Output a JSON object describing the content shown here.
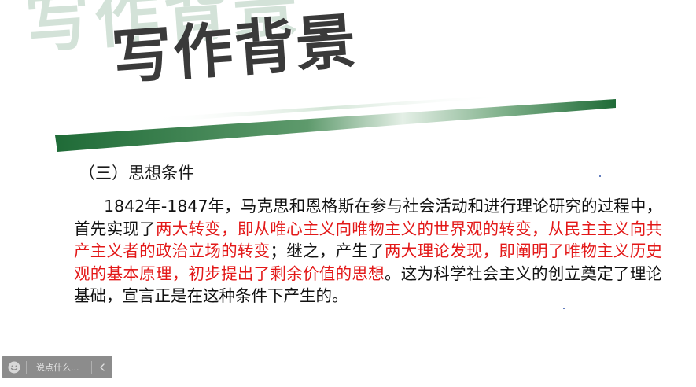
{
  "slide": {
    "title_shadow": "写作背景",
    "title": "写作背景",
    "section_heading": "（三）思想条件",
    "paragraph": [
      {
        "text": "1842年-1847年，马克思和恩格斯在参与社会活动和进行理论研究的过程中，首先实现了",
        "highlight": false
      },
      {
        "text": "两大转变，即从唯心主义向唯物主义的世界观的转变，从民主主义向共产主义者的政治立场的转变",
        "highlight": true
      },
      {
        "text": "；继之，产生了",
        "highlight": false
      },
      {
        "text": "两大理论发现，即阐明了唯物主义历史观的基本原理，初步提出了剩余价值的思想",
        "highlight": true
      },
      {
        "text": "。这为科学社会主义的创立奠定了理论基础，宣言正是在这种条件下产生的。",
        "highlight": false
      }
    ],
    "colors": {
      "highlight": "#e31818",
      "title": "#3a3a3a",
      "title_shadow": "#d3e2d8",
      "swoosh_dark": "#1f6b37",
      "swoosh_light": "#cfe3d3"
    }
  },
  "comment_bar": {
    "emoji_icon": "smiley-icon",
    "placeholder": "说点什么...",
    "collapse_icon": "chevron-left-icon"
  }
}
